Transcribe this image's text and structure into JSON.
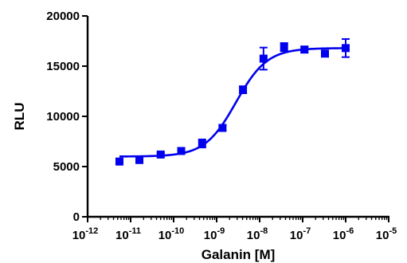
{
  "chart_data": {
    "type": "scatter",
    "title": "",
    "xlabel": "Galanin [M]",
    "ylabel": "RLU",
    "x_scale": "log",
    "xlim": [
      1e-12,
      1e-05
    ],
    "ylim": [
      0,
      20000
    ],
    "x_ticks": [
      {
        "value": 1e-12,
        "base": "10",
        "exp": "-12"
      },
      {
        "value": 1e-11,
        "base": "10",
        "exp": "-11"
      },
      {
        "value": 1e-10,
        "base": "10",
        "exp": "-10"
      },
      {
        "value": 1e-09,
        "base": "10",
        "exp": "-9"
      },
      {
        "value": 1e-08,
        "base": "10",
        "exp": "-8"
      },
      {
        "value": 1e-07,
        "base": "10",
        "exp": "-7"
      },
      {
        "value": 1e-06,
        "base": "10",
        "exp": "-6"
      },
      {
        "value": 1e-05,
        "base": "10",
        "exp": "-5"
      }
    ],
    "y_ticks": [
      {
        "value": 0,
        "label": "0"
      },
      {
        "value": 5000,
        "label": "5000"
      },
      {
        "value": 10000,
        "label": "10000"
      },
      {
        "value": 15000,
        "label": "15000"
      },
      {
        "value": 20000,
        "label": "20000"
      }
    ],
    "grid": false,
    "color": "#0000ee",
    "points": [
      {
        "x": 5.5e-12,
        "y": 5500,
        "err": 200
      },
      {
        "x": 1.6e-11,
        "y": 5650,
        "err": 200
      },
      {
        "x": 5e-11,
        "y": 6200,
        "err": 150
      },
      {
        "x": 1.5e-10,
        "y": 6550,
        "err": 250
      },
      {
        "x": 4.6e-10,
        "y": 7300,
        "err": 400
      },
      {
        "x": 1.37e-09,
        "y": 8850,
        "err": 250
      },
      {
        "x": 4.1e-09,
        "y": 12650,
        "err": 350
      },
      {
        "x": 1.23e-08,
        "y": 15750,
        "err": 1100
      },
      {
        "x": 3.7e-08,
        "y": 16900,
        "err": 400
      },
      {
        "x": 1.1e-07,
        "y": 16650,
        "err": 300
      },
      {
        "x": 3.3e-07,
        "y": 16250,
        "err": 300
      },
      {
        "x": 1e-06,
        "y": 16800,
        "err": 900
      }
    ],
    "fit": {
      "model": "sigmoidal dose-response",
      "bottom": 6000,
      "top": 16800,
      "log_ec50": -8.55,
      "hill": 1.2,
      "x_range": [
        5.5e-12,
        1e-06
      ]
    }
  }
}
